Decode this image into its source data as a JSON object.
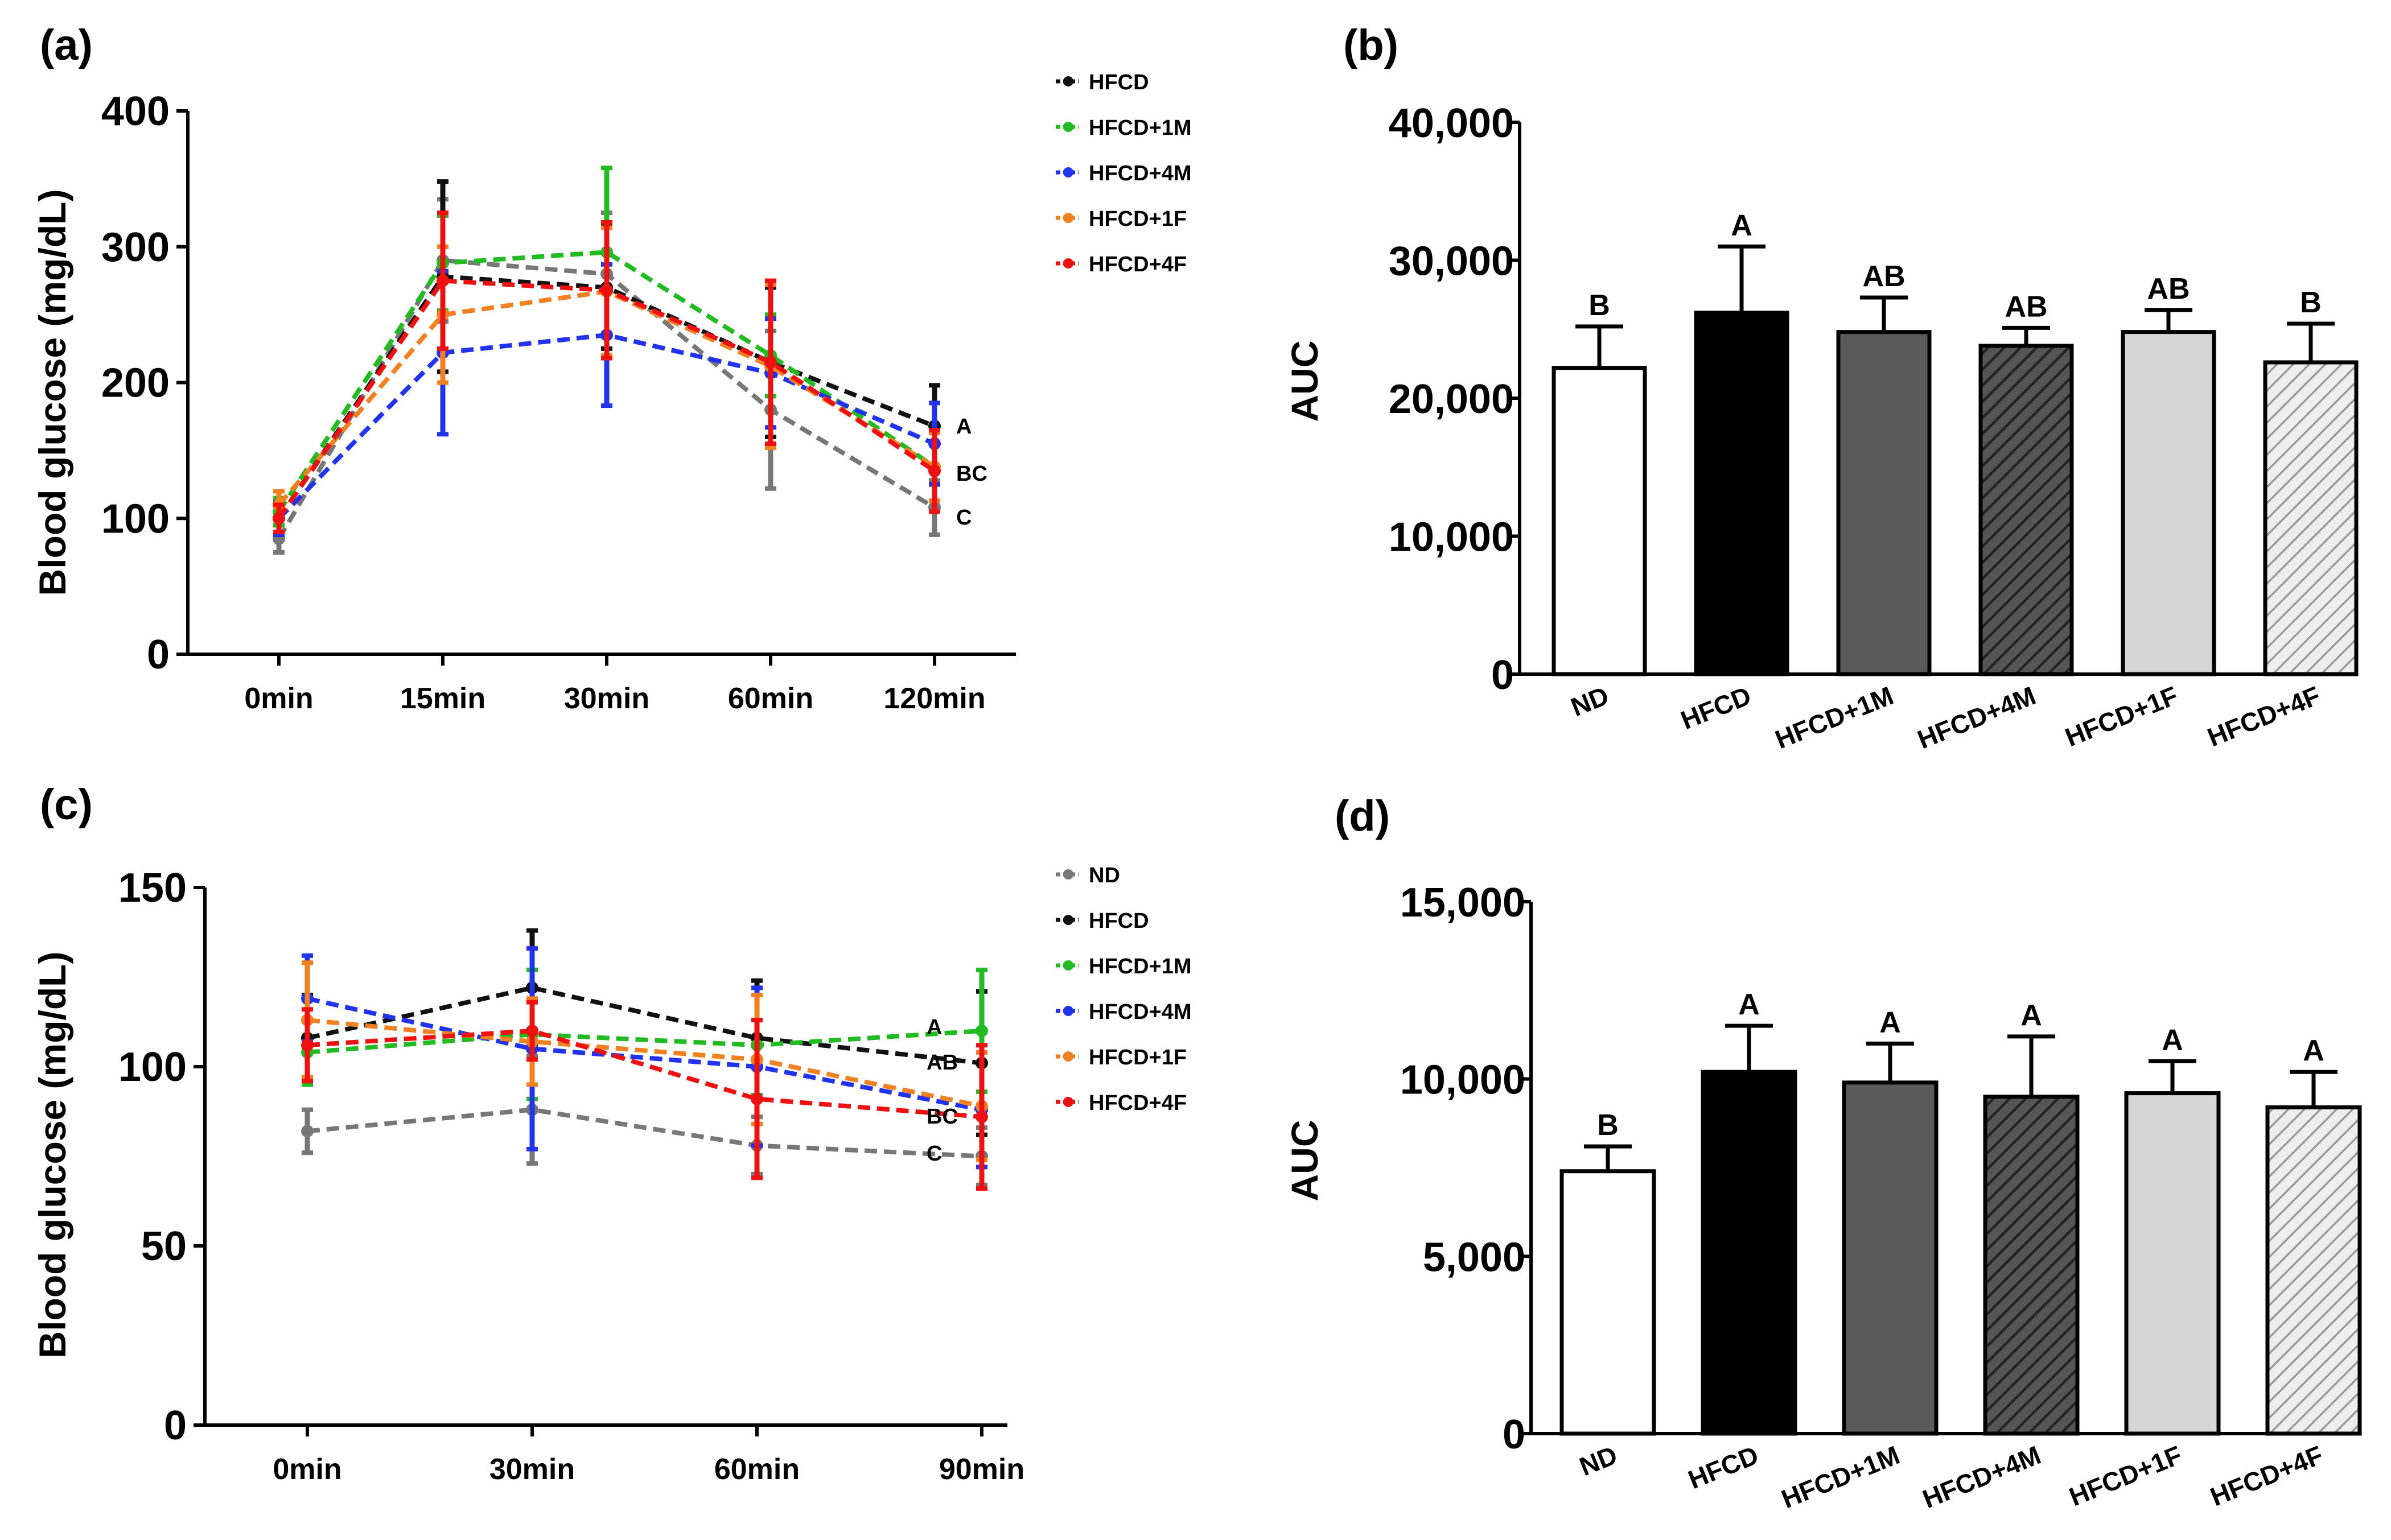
{
  "colors": {
    "ND": "#777777",
    "HFCD": "#111111",
    "HFCD+1M": "#22bb22",
    "HFCD+4M": "#2233ee",
    "HFCD+1F": "#f08020",
    "HFCD+4F": "#ee1111"
  },
  "chart_data": [
    {
      "panel": "(a)",
      "type": "line",
      "ylabel": "Blood glucose (mg/dL)",
      "ylim": [
        0,
        400
      ],
      "yticks": [
        "0",
        "100",
        "200",
        "300",
        "400"
      ],
      "categories": [
        "0min",
        "15min",
        "30min",
        "60min",
        "120min"
      ],
      "legend": [
        "HFCD",
        "HFCD+1M",
        "HFCD+4M",
        "HFCD+1F",
        "HFCD+4F"
      ],
      "series": [
        {
          "name": "ND",
          "values": [
            85,
            290,
            280,
            180,
            108
          ],
          "errors": [
            10,
            45,
            45,
            58,
            20
          ]
        },
        {
          "name": "HFCD",
          "values": [
            100,
            278,
            270,
            215,
            168
          ],
          "errors": [
            12,
            70,
            45,
            55,
            30
          ]
        },
        {
          "name": "HFCD+1M",
          "values": [
            105,
            288,
            296,
            220,
            138
          ],
          "errors": [
            10,
            35,
            62,
            30,
            25
          ]
        },
        {
          "name": "HFCD+4M",
          "values": [
            100,
            222,
            235,
            207,
            155
          ],
          "errors": [
            12,
            60,
            52,
            40,
            30
          ]
        },
        {
          "name": "HFCD+1F",
          "values": [
            110,
            250,
            267,
            212,
            138
          ],
          "errors": [
            10,
            50,
            47,
            60,
            25
          ]
        },
        {
          "name": "HFCD+4F",
          "values": [
            100,
            275,
            268,
            215,
            135
          ],
          "errors": [
            10,
            50,
            50,
            60,
            30
          ]
        }
      ],
      "annotations": [
        "A",
        "BC",
        "C"
      ]
    },
    {
      "panel": "(b)",
      "type": "bar",
      "ylabel": "AUC",
      "ylim": [
        0,
        40000
      ],
      "yticks": [
        "0",
        "10,000",
        "20,000",
        "30,000",
        "40,000"
      ],
      "categories": [
        "ND",
        "HFCD",
        "HFCD+1M",
        "HFCD+4M",
        "HFCD+1F",
        "HFCD+4F"
      ],
      "values": [
        22200,
        26200,
        24800,
        23800,
        24800,
        22600
      ],
      "errors": [
        3000,
        4800,
        2500,
        1300,
        1600,
        2800
      ],
      "labels": [
        "B",
        "A",
        "AB",
        "AB",
        "AB",
        "B"
      ]
    },
    {
      "panel": "(c)",
      "type": "line",
      "ylabel": "Blood glucose (mg/dL)",
      "ylim": [
        0,
        150
      ],
      "yticks": [
        "0",
        "50",
        "100",
        "150"
      ],
      "categories": [
        "0min",
        "30min",
        "60min",
        "90min"
      ],
      "legend": [
        "ND",
        "HFCD",
        "HFCD+1M",
        "HFCD+4M",
        "HFCD+1F",
        "HFCD+4F"
      ],
      "series": [
        {
          "name": "ND",
          "values": [
            82,
            88,
            78,
            75
          ],
          "errors": [
            6,
            15,
            8,
            8
          ]
        },
        {
          "name": "HFCD",
          "values": [
            108,
            122,
            108,
            101
          ],
          "errors": [
            12,
            16,
            16,
            20
          ]
        },
        {
          "name": "HFCD+1M",
          "values": [
            104,
            109,
            106,
            110
          ],
          "errors": [
            9,
            18,
            14,
            17
          ]
        },
        {
          "name": "HFCD+4M",
          "values": [
            119,
            105,
            100,
            88
          ],
          "errors": [
            12,
            28,
            22,
            16
          ]
        },
        {
          "name": "HFCD+1F",
          "values": [
            113,
            107,
            102,
            89
          ],
          "errors": [
            16,
            12,
            18,
            15
          ]
        },
        {
          "name": "HFCD+4F",
          "values": [
            106,
            110,
            91,
            86
          ],
          "errors": [
            10,
            8,
            22,
            20
          ]
        }
      ],
      "annotations": [
        "A",
        "AB",
        "BC",
        "C"
      ]
    },
    {
      "panel": "(d)",
      "type": "bar",
      "ylabel": "AUC",
      "ylim": [
        0,
        15000
      ],
      "yticks": [
        "0",
        "5,000",
        "10,000",
        "15,000"
      ],
      "categories": [
        "ND",
        "HFCD",
        "HFCD+1M",
        "HFCD+4M",
        "HFCD+1F",
        "HFCD+4F"
      ],
      "values": [
        7400,
        10200,
        9900,
        9500,
        9600,
        9200
      ],
      "errors": [
        700,
        1300,
        1100,
        1700,
        900,
        1000
      ],
      "labels": [
        "B",
        "A",
        "A",
        "A",
        "A",
        "A"
      ]
    }
  ]
}
